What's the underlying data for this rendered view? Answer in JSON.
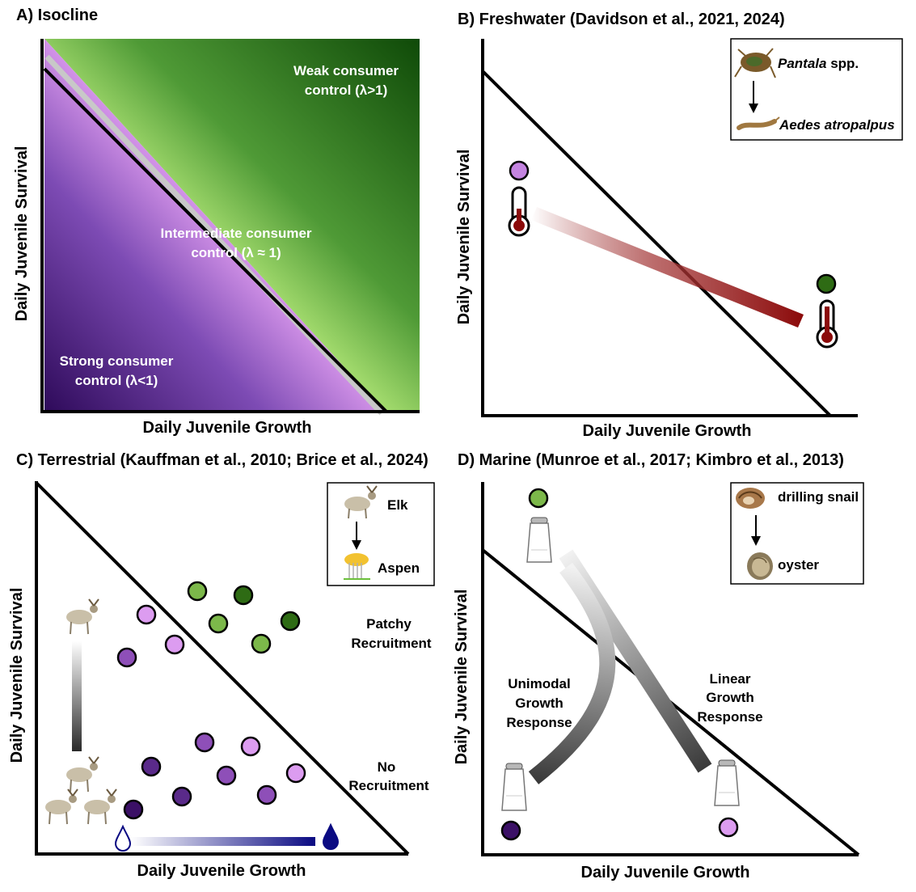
{
  "panels": {
    "a": {
      "title": "A) Isocline",
      "xlabel": "Daily Juvenile Growth",
      "ylabel": "Daily Juvenile Survival",
      "weak": {
        "line1": "Weak consumer",
        "line2": "control (λ>1)"
      },
      "intermediate": {
        "line1": "Intermediate consumer",
        "line2": "control (λ ≈ 1)"
      },
      "strong": {
        "line1": "Strong consumer",
        "line2": "control (λ<1)"
      }
    },
    "b": {
      "title": "B) Freshwater (Davidson et al., 2021, 2024)",
      "xlabel": "Daily Juvenile Growth",
      "ylabel": "Daily Juvenile Survival",
      "legend": {
        "predator_italic": "Pantala",
        "predator_suffix": " spp.",
        "prey": "Aedes atropalpus"
      }
    },
    "c": {
      "title": "C) Terrestrial (Kauffman et al., 2010; Brice et al., 2024)",
      "xlabel": "Daily Juvenile Growth",
      "ylabel": "Daily Juvenile Survival",
      "legend": {
        "predator": "Elk",
        "prey": "Aspen"
      },
      "patchy": {
        "line1": "Patchy",
        "line2": "Recruitment"
      },
      "none": {
        "line1": "No",
        "line2": "Recruitment"
      }
    },
    "d": {
      "title": "D) Marine (Munroe et al., 2017; Kimbro et al., 2013)",
      "xlabel": "Daily Juvenile Growth",
      "ylabel": "Daily Juvenile Survival",
      "legend": {
        "predator": "drilling snail",
        "prey": "oyster"
      },
      "unimodal": {
        "line1": "Unimodal",
        "line2": "Growth",
        "line3": "Response"
      },
      "linear": {
        "line1": "Linear",
        "line2": "Growth",
        "line3": "Response"
      }
    }
  },
  "colors": {
    "green_dark": "#2e6b14",
    "green_light": "#7cb84a",
    "purple_dark": "#3b1066",
    "purple_mid": "#8e4fb8",
    "purple_light": "#dc9cf0",
    "thermo_red": "#8b0a0a",
    "water_blue": "#0a0a82"
  }
}
